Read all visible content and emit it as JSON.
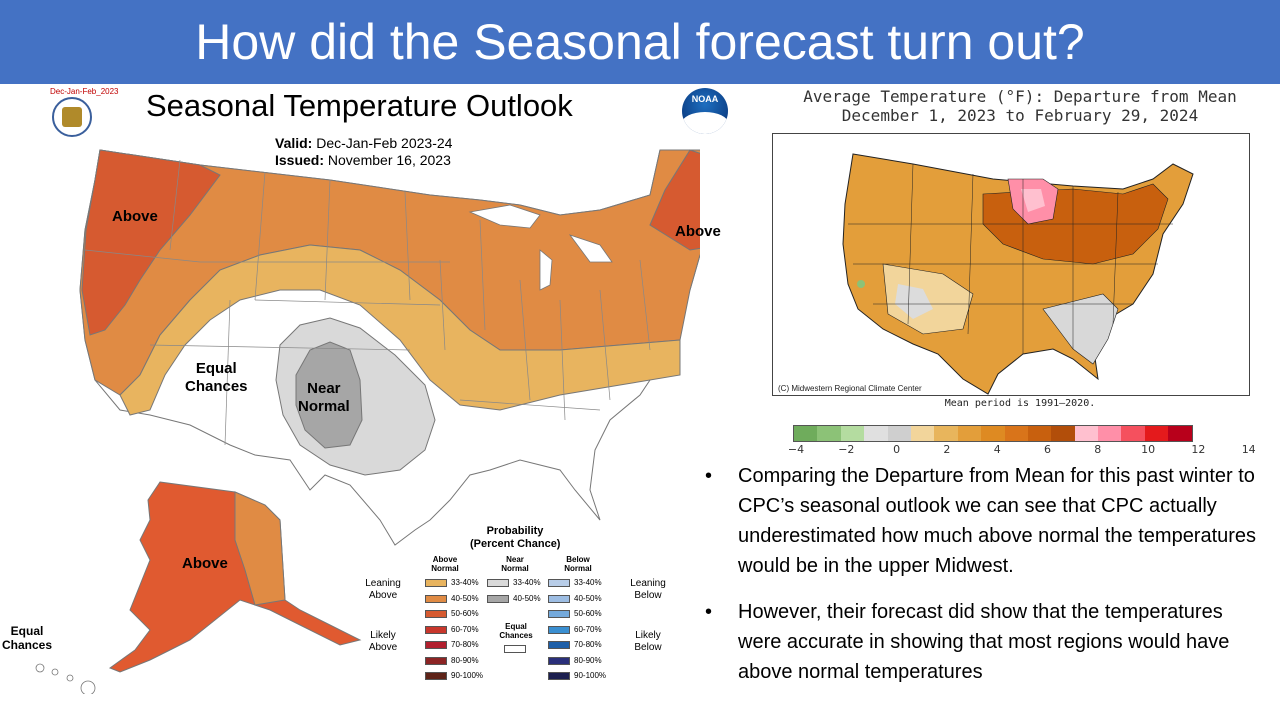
{
  "slide": {
    "title": "How did the Seasonal forecast turn out?"
  },
  "outlook": {
    "code": "Dec-Jan-Feb_2023",
    "title": "Seasonal Temperature Outlook",
    "valid_label": "Valid:",
    "valid_value": "Dec-Jan-Feb 2023-24",
    "issued_label": "Issued:",
    "issued_value": "November 16, 2023",
    "noaa_text": "NOAA",
    "labels": {
      "above_nw": "Above",
      "above_ne": "Above",
      "above_ak": "Above",
      "equal_chances": "Equal\nChances",
      "near_normal": "Near\nNormal",
      "equal_chances_hi": "Equal\nChances"
    },
    "colors": {
      "above_33_40": "#e8b45f",
      "above_40_50": "#e08b44",
      "above_50_60": "#d65a30",
      "near_33_40": "#d9d9d9",
      "near_40_50": "#a6a6a6"
    },
    "legend": {
      "title": "Probability\n(Percent Chance)",
      "col_above": "Above\nNormal",
      "col_near": "Near\nNormal",
      "col_below": "Below\nNormal",
      "leaning_above": "Leaning\nAbove",
      "leaning_below": "Leaning\nBelow",
      "likely_above": "Likely\nAbove",
      "likely_below": "Likely\nBelow",
      "equal_chances": "Equal\nChances",
      "above_rows": [
        {
          "label": "33-40%",
          "color": "#e8b45f"
        },
        {
          "label": "40-50%",
          "color": "#e08b44"
        },
        {
          "label": "50-60%",
          "color": "#d65a30"
        },
        {
          "label": "60-70%",
          "color": "#c8372c"
        },
        {
          "label": "70-80%",
          "color": "#b11f2e"
        },
        {
          "label": "80-90%",
          "color": "#8c2424"
        },
        {
          "label": "90-100%",
          "color": "#5e2318"
        }
      ],
      "near_rows": [
        {
          "label": "33-40%",
          "color": "#d9d9d9"
        },
        {
          "label": "40-50%",
          "color": "#a6a6a6"
        }
      ],
      "below_rows": [
        {
          "label": "33-40%",
          "color": "#b8cde8"
        },
        {
          "label": "40-50%",
          "color": "#9dbde3"
        },
        {
          "label": "50-60%",
          "color": "#74a9db"
        },
        {
          "label": "60-70%",
          "color": "#3a8fd1"
        },
        {
          "label": "70-80%",
          "color": "#1e5fa8"
        },
        {
          "label": "80-90%",
          "color": "#2a2f7a"
        },
        {
          "label": "90-100%",
          "color": "#1c1f4f"
        }
      ]
    }
  },
  "departure": {
    "title_line1": "Average Temperature (°F): Departure from Mean",
    "title_line2": "December 1, 2023 to February 29, 2024",
    "credit": "(C) Midwestern Regional Climate Center",
    "mean_period": "Mean period is 1991–2020.",
    "colorbar_colors": [
      "#6fac5c",
      "#8cc277",
      "#b4dca0",
      "#e0e0e0",
      "#cfcfcf",
      "#f2d59b",
      "#e8b55c",
      "#e39e3a",
      "#de8a22",
      "#d9741a",
      "#c8600e",
      "#b24e0a",
      "#ffc0cf",
      "#ff8fa8",
      "#f5505e",
      "#e41a1c",
      "#b8001b"
    ],
    "colorbar_ticks": [
      "−4",
      "−2",
      "0",
      "2",
      "4",
      "6",
      "8",
      "10",
      "12",
      "14"
    ]
  },
  "bullets": [
    "Comparing the Departure from Mean for this past winter to CPC’s seasonal outlook we can see that CPC actually underestimated how much above normal the temperatures would be in the upper Midwest.",
    "However, their forecast did show that the temperatures were accurate in showing that most regions would have above normal temperatures"
  ]
}
